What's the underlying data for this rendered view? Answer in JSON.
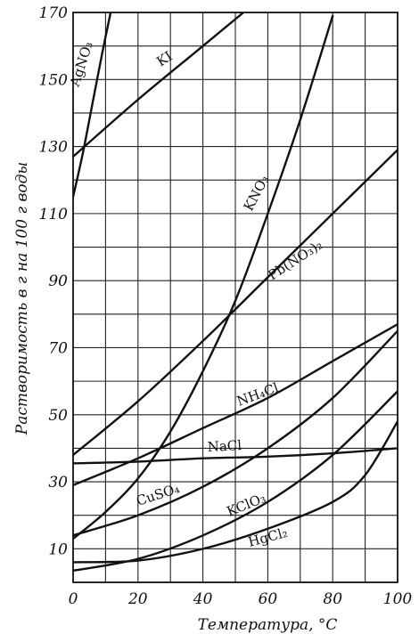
{
  "chart_data": {
    "type": "line",
    "xlabel": "Температура, °C",
    "ylabel": "Растворимость в г на 100 г воды",
    "xlim": [
      0,
      100
    ],
    "ylim": [
      0,
      170
    ],
    "x_ticks": [
      "0",
      "20",
      "40",
      "60",
      "80",
      "100"
    ],
    "y_ticks": [
      "10",
      "30",
      "50",
      "70",
      "90",
      "110",
      "130",
      "150",
      "170"
    ],
    "grid": true,
    "legend": "none",
    "series": [
      {
        "name": "AgNO3",
        "label_text": "AgNO₃",
        "label_sub": "",
        "points": [
          [
            0,
            115
          ],
          [
            3,
            128
          ],
          [
            6,
            143
          ],
          [
            9,
            158
          ],
          [
            12,
            172
          ]
        ]
      },
      {
        "name": "KI",
        "label_text": "KI",
        "label_sub": "",
        "points": [
          [
            0,
            127
          ],
          [
            20,
            144
          ],
          [
            40,
            160
          ],
          [
            60,
            176
          ]
        ]
      },
      {
        "name": "KNO3",
        "label_text": "KNO₃",
        "label_sub": "",
        "points": [
          [
            0,
            13
          ],
          [
            10,
            21
          ],
          [
            20,
            31
          ],
          [
            30,
            45
          ],
          [
            40,
            63
          ],
          [
            50,
            84
          ],
          [
            60,
            110
          ],
          [
            70,
            138
          ],
          [
            80,
            169
          ]
        ]
      },
      {
        "name": "Pb(NO3)2",
        "label_text": "Pb(NO₃)₂",
        "label_sub": "",
        "points": [
          [
            0,
            38
          ],
          [
            20,
            54
          ],
          [
            40,
            72
          ],
          [
            60,
            91
          ],
          [
            80,
            110
          ],
          [
            100,
            129
          ]
        ]
      },
      {
        "name": "NH4Cl",
        "label_text": "NH₄Cl",
        "label_sub": "",
        "points": [
          [
            0,
            29
          ],
          [
            20,
            37
          ],
          [
            40,
            46
          ],
          [
            60,
            55
          ],
          [
            80,
            66
          ],
          [
            100,
            77
          ]
        ]
      },
      {
        "name": "NaCl",
        "label_text": "NaCl",
        "label_sub": "",
        "points": [
          [
            0,
            35.5
          ],
          [
            20,
            36
          ],
          [
            40,
            37
          ],
          [
            60,
            37.5
          ],
          [
            80,
            38.5
          ],
          [
            100,
            40
          ]
        ]
      },
      {
        "name": "CuSO4",
        "label_text": "CuSO₄",
        "label_sub": "",
        "points": [
          [
            0,
            14
          ],
          [
            20,
            20
          ],
          [
            40,
            28.5
          ],
          [
            60,
            40
          ],
          [
            80,
            55
          ],
          [
            100,
            75
          ]
        ]
      },
      {
        "name": "KClO3",
        "label_text": "KClO₃",
        "label_sub": "",
        "points": [
          [
            0,
            3.5
          ],
          [
            20,
            7
          ],
          [
            40,
            14
          ],
          [
            60,
            24
          ],
          [
            80,
            38
          ],
          [
            100,
            57
          ]
        ]
      },
      {
        "name": "HgCl2",
        "label_text": "HgCl₂",
        "label_sub": "",
        "points": [
          [
            0,
            6
          ],
          [
            20,
            6.5
          ],
          [
            40,
            10
          ],
          [
            60,
            16
          ],
          [
            80,
            24
          ],
          [
            90,
            32
          ],
          [
            100,
            48
          ]
        ]
      }
    ]
  }
}
